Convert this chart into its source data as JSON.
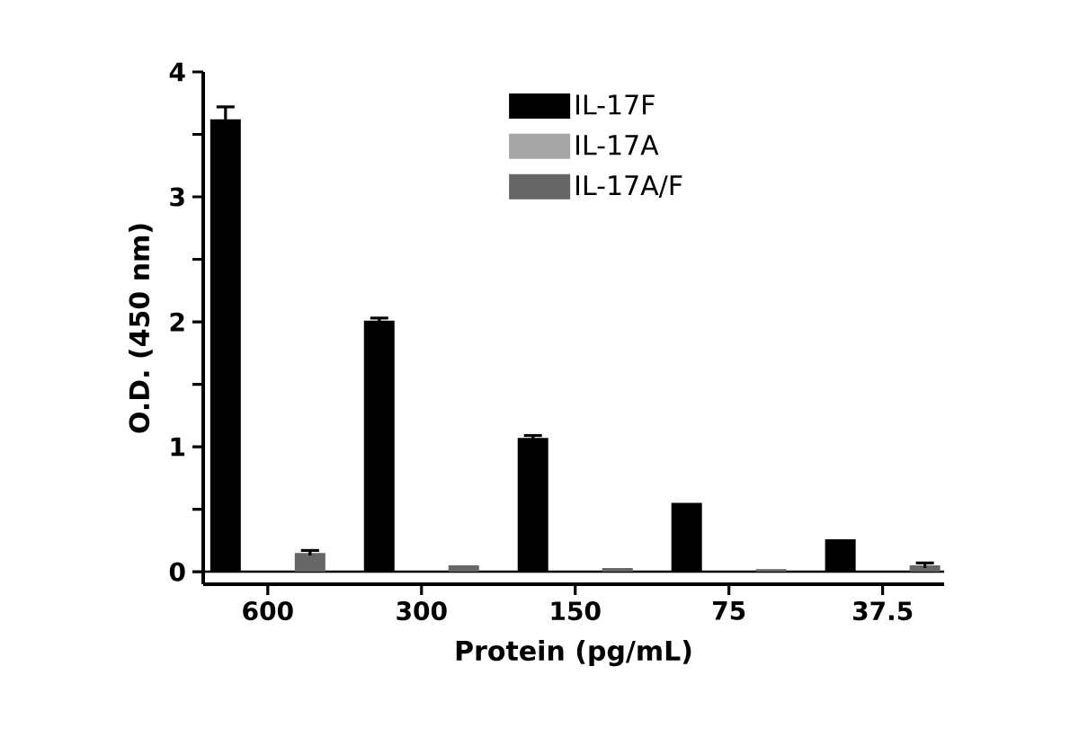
{
  "chart_data": {
    "type": "bar",
    "xlabel": "Protein (pg/mL)",
    "ylabel": "O.D. (450 nm)",
    "categories": [
      "600",
      "300",
      "150",
      "75",
      "37.5"
    ],
    "series": [
      {
        "name": "IL-17F",
        "color": "#000000",
        "values": [
          3.62,
          2.01,
          1.07,
          0.55,
          0.26
        ],
        "errors": [
          0.1,
          0.02,
          0.02,
          null,
          null
        ]
      },
      {
        "name": "IL-17A",
        "color": "#a6a6a6",
        "values": [
          0,
          null,
          0,
          0,
          0
        ]
      },
      {
        "name": "IL-17A/F",
        "color": "#666666",
        "values": [
          0.15,
          0.05,
          0.03,
          0.02,
          0.05
        ],
        "errors": [
          0.02,
          null,
          null,
          null,
          0.02
        ]
      }
    ],
    "ylim": [
      -0.1,
      4
    ],
    "yticks": [
      0,
      {
        "value": 0.5,
        "label": null
      },
      1,
      {
        "value": 1.5,
        "label": null
      },
      2,
      {
        "value": 2.5,
        "label": null
      },
      3,
      {
        "value": 3.5,
        "label": null
      },
      4
    ],
    "ref_lines": [
      {
        "axis": "y",
        "value": 0
      }
    ],
    "legend": "top right",
    "grid": false
  }
}
